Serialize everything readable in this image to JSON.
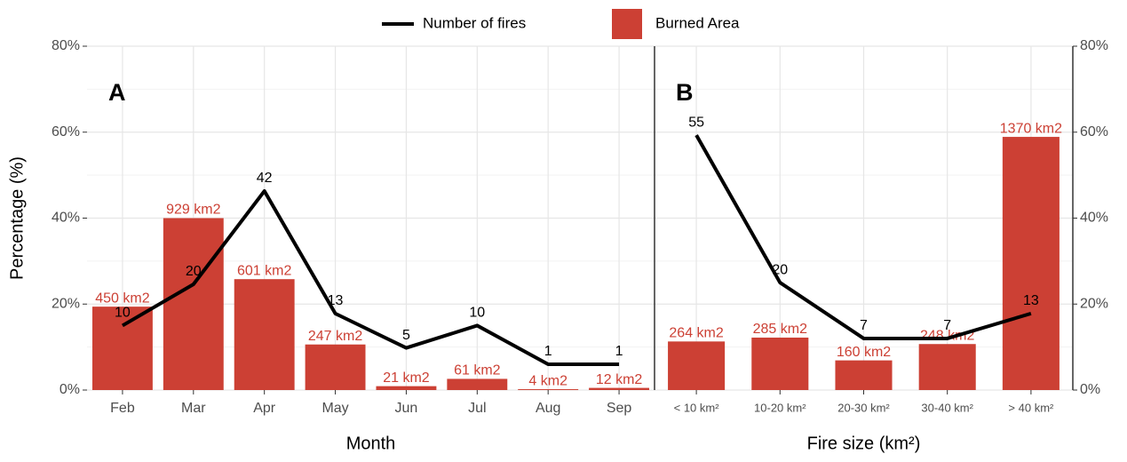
{
  "chart_data": [
    {
      "type": "bar",
      "panel_label": "A",
      "xlabel": "Month",
      "ylabel": "Percentage (%)",
      "yaxis": "left",
      "categories": [
        "Feb",
        "Mar",
        "Apr",
        "May",
        "Jun",
        "Jul",
        "Aug",
        "Sep"
      ],
      "ylim": [
        0,
        80
      ],
      "yticks": [
        {
          "value": 0,
          "label": "0%"
        },
        {
          "value": 20,
          "label": "20%"
        },
        {
          "value": 40,
          "label": "40%"
        },
        {
          "value": 60,
          "label": "60%"
        },
        {
          "value": 80,
          "label": "80%"
        }
      ],
      "grid": true,
      "series": [
        {
          "name": "Burned Area",
          "kind": "bar",
          "color": "#cc4034",
          "values": [
            19.4,
            40.0,
            25.8,
            10.6,
            0.9,
            2.6,
            0.2,
            0.5
          ],
          "labels": [
            "450 km2",
            "929 km2",
            "601 km2",
            "247 km2",
            "21 km2",
            "61 km2",
            "4 km2",
            "12 km2"
          ]
        },
        {
          "name": "Number of fires",
          "kind": "line",
          "color": "#000000",
          "values": [
            15,
            24.6,
            46.3,
            17.8,
            9.8,
            15,
            6,
            6
          ],
          "labels": [
            "10",
            "20",
            "42",
            "13",
            "5",
            "10",
            "1",
            "1"
          ]
        }
      ]
    },
    {
      "type": "bar",
      "panel_label": "B",
      "xlabel": "Fire size (km²)",
      "yaxis": "right",
      "categories": [
        "< 10 km²",
        "10-20 km²",
        "20-30 km²",
        "30-40 km²",
        "> 40 km²"
      ],
      "ylim": [
        0,
        80
      ],
      "yticks": [
        {
          "value": 0,
          "label": "0%"
        },
        {
          "value": 20,
          "label": "20%"
        },
        {
          "value": 40,
          "label": "40%"
        },
        {
          "value": 60,
          "label": "60%"
        },
        {
          "value": 80,
          "label": "80%"
        }
      ],
      "grid": true,
      "series": [
        {
          "kind": "bar",
          "color": "#cc4034",
          "values": [
            11.3,
            12.2,
            6.9,
            10.7,
            58.9
          ],
          "labels": [
            "264 km2",
            "285 km2",
            "160 km2",
            "248 km2",
            "1370 km2"
          ]
        },
        {
          "kind": "line",
          "color": "#000000",
          "values": [
            59.3,
            25,
            12,
            12,
            17.8
          ],
          "labels": [
            "55",
            "20",
            "7",
            "7",
            "13"
          ]
        }
      ]
    }
  ]
}
